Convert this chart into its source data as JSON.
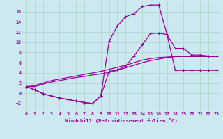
{
  "xlabel": "Windchill (Refroidissement éolien,°C)",
  "background_color": "#cce8f0",
  "grid_color": "#b0d8cc",
  "line_color": "#990099",
  "xlim": [
    -0.5,
    23.5
  ],
  "ylim": [
    -3.5,
    18.0
  ],
  "yticks": [
    -2,
    0,
    2,
    4,
    6,
    8,
    10,
    12,
    14,
    16
  ],
  "xticks": [
    0,
    1,
    2,
    3,
    4,
    5,
    6,
    7,
    8,
    9,
    10,
    11,
    12,
    13,
    14,
    15,
    16,
    17,
    18,
    19,
    20,
    21,
    22,
    23
  ],
  "line_peak_x": [
    0,
    1,
    2,
    3,
    4,
    5,
    6,
    7,
    8,
    9,
    10,
    11,
    12,
    13,
    14,
    15,
    16,
    17,
    18,
    19,
    20,
    21,
    22,
    23
  ],
  "line_peak_y": [
    1.3,
    0.7,
    -0.1,
    -0.5,
    -0.9,
    -1.2,
    -1.5,
    -1.8,
    -2.0,
    -0.5,
    10.2,
    13.2,
    15.0,
    15.6,
    17.0,
    17.3,
    17.3,
    11.5,
    4.5,
    4.5,
    4.5,
    4.5,
    4.5,
    4.5
  ],
  "line_mid_x": [
    0,
    1,
    2,
    3,
    4,
    5,
    6,
    7,
    8,
    9,
    10,
    11,
    12,
    13,
    14,
    15,
    16,
    17,
    18,
    19,
    20,
    21,
    22,
    23
  ],
  "line_mid_y": [
    1.3,
    0.7,
    -0.1,
    -0.5,
    -0.9,
    -1.2,
    -1.5,
    -1.8,
    -2.0,
    -0.5,
    4.3,
    4.6,
    5.3,
    7.3,
    9.5,
    11.7,
    11.8,
    11.5,
    8.8,
    8.8,
    7.5,
    7.5,
    7.3,
    7.3
  ],
  "line_lo1_x": [
    0,
    1,
    2,
    3,
    4,
    5,
    6,
    7,
    8,
    9,
    10,
    11,
    12,
    13,
    14,
    15,
    16,
    17,
    18,
    19,
    20,
    21,
    22,
    23
  ],
  "line_lo1_y": [
    1.3,
    1.3,
    1.8,
    2.2,
    2.5,
    2.8,
    3.1,
    3.3,
    3.6,
    3.8,
    4.1,
    4.5,
    5.0,
    5.5,
    6.0,
    6.4,
    6.7,
    7.0,
    7.2,
    7.3,
    7.3,
    7.3,
    7.3,
    7.3
  ],
  "line_lo2_x": [
    0,
    1,
    2,
    3,
    4,
    5,
    6,
    7,
    8,
    9,
    10,
    11,
    12,
    13,
    14,
    15,
    16,
    17,
    18,
    19,
    20,
    21,
    22,
    23
  ],
  "line_lo2_y": [
    1.3,
    1.5,
    2.0,
    2.5,
    2.8,
    3.1,
    3.4,
    3.7,
    4.0,
    4.3,
    4.7,
    5.1,
    5.5,
    6.0,
    6.5,
    6.8,
    7.0,
    7.1,
    7.2,
    7.2,
    7.2,
    7.2,
    7.2,
    7.2
  ]
}
